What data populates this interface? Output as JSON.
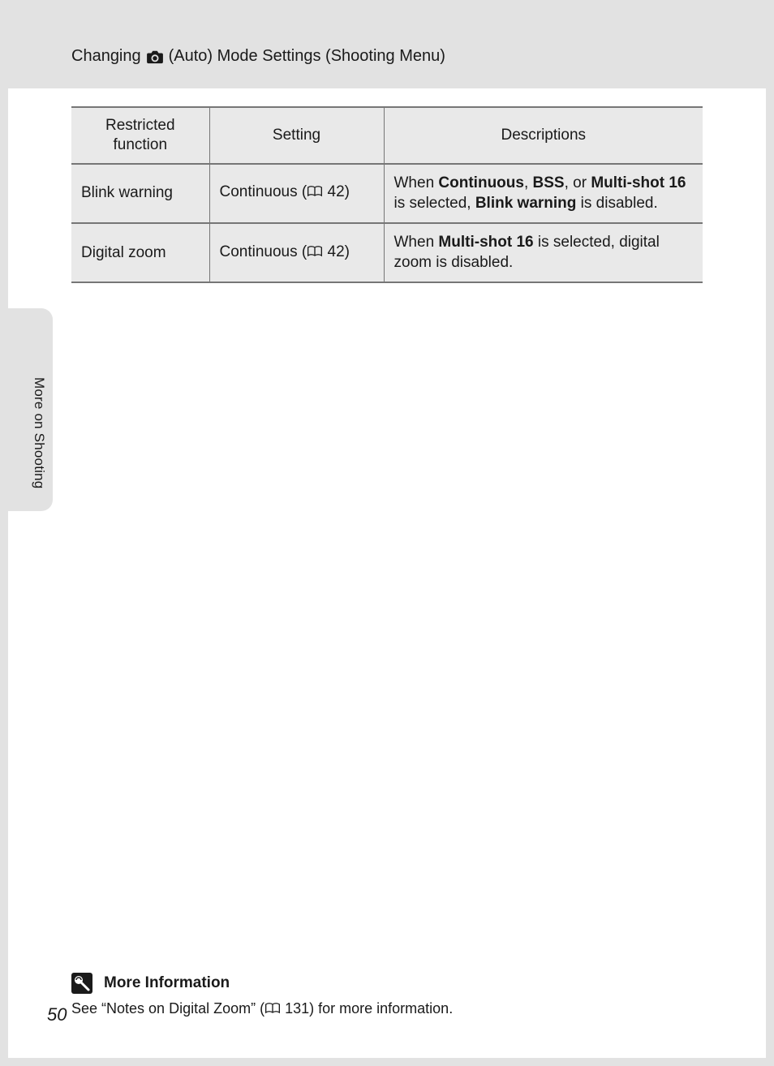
{
  "header": {
    "prefix": "Changing",
    "suffix": "(Auto) Mode Settings (Shooting Menu)"
  },
  "table": {
    "columns": [
      "Restricted function",
      "Setting",
      "Descriptions"
    ],
    "rows": [
      {
        "func": "Blink warning",
        "setting_prefix": "Continuous (",
        "setting_page": "42)",
        "desc_parts": [
          "When ",
          "Continuous",
          ", ",
          "BSS",
          ", or ",
          "Multi-shot 16",
          " is selected, ",
          "Blink warning",
          " is disabled."
        ],
        "desc_bold": [
          false,
          true,
          false,
          true,
          false,
          true,
          false,
          true,
          false
        ]
      },
      {
        "func": "Digital zoom",
        "setting_prefix": "Continuous (",
        "setting_page": "42)",
        "desc_parts": [
          "When ",
          "Multi-shot 16",
          " is selected, digital zoom is disabled."
        ],
        "desc_bold": [
          false,
          true,
          false
        ]
      }
    ]
  },
  "side_label": "More on Shooting",
  "footer": {
    "heading": "More Information",
    "body_prefix": "See “Notes on Digital Zoom” (",
    "body_page": "131) for more information."
  },
  "page_number": "50",
  "colors": {
    "page_bg": "#ffffff",
    "outer_bg": "#e2e2e2",
    "table_bg": "#e9e9e9",
    "border": "#767676",
    "text": "#1a1a1a"
  }
}
